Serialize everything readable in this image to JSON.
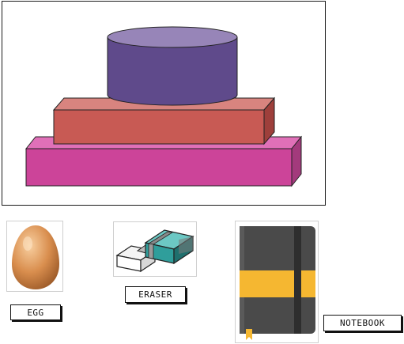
{
  "labels": {
    "egg": "EGG",
    "eraser": "ERASER",
    "notebook": "NOTEBOOK"
  },
  "colors": {
    "top_shape": "#5f4a8b",
    "middle_shape": "#c85a54",
    "bottom_shape": "#cc4499",
    "notebook_cover": "#4a4a4a",
    "notebook_band": "#f5b731",
    "eraser_sleeve": "#2f9e9b"
  }
}
